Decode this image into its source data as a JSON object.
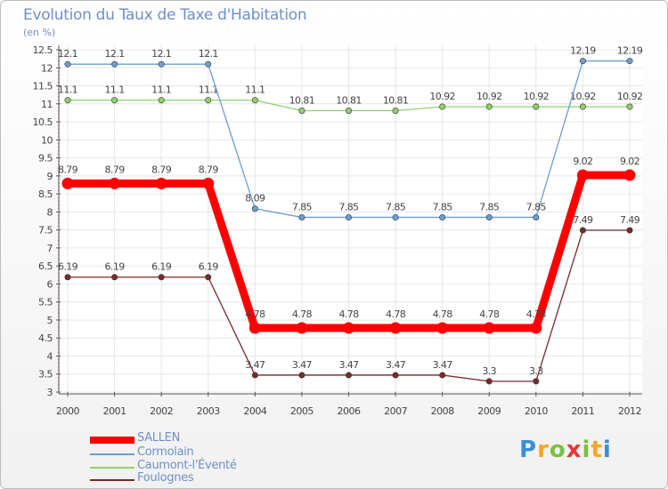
{
  "chart_data": {
    "type": "line",
    "title": "Evolution du Taux de Taxe d'Habitation",
    "subtitle": "(en %)",
    "xlabel": "",
    "ylabel": "",
    "x": [
      "2000",
      "2001",
      "2002",
      "2003",
      "2004",
      "2005",
      "2006",
      "2007",
      "2008",
      "2009",
      "2010",
      "2011",
      "2012"
    ],
    "ylim": [
      3,
      12.5
    ],
    "yticks": [
      "3",
      "3.5",
      "4",
      "4.5",
      "5",
      "5.5",
      "6",
      "6.5",
      "7",
      "7.5",
      "8",
      "8.5",
      "9",
      "9.5",
      "10",
      "10.5",
      "11",
      "11.5",
      "12",
      "12.5"
    ],
    "legend_position": "bottom-left",
    "series": [
      {
        "name": "SALLEN",
        "color": "#ff0000",
        "values": [
          8.79,
          8.79,
          8.79,
          8.79,
          4.78,
          4.78,
          4.78,
          4.78,
          4.78,
          4.78,
          4.78,
          9.02,
          9.02
        ],
        "labels": [
          "8.79",
          "8.79",
          "8.79",
          "8.79",
          "4.78",
          "4.78",
          "4.78",
          "4.78",
          "4.78",
          "4.78",
          "4.78",
          "9.02",
          "9.02"
        ]
      },
      {
        "name": "Cormolain",
        "color": "#6c9fcf",
        "values": [
          12.1,
          12.1,
          12.1,
          12.1,
          8.09,
          7.85,
          7.85,
          7.85,
          7.85,
          7.85,
          7.85,
          12.19,
          12.19
        ],
        "labels": [
          "12.1",
          "12.1",
          "12.1",
          "12.1",
          "8.09",
          "7.85",
          "7.85",
          "7.85",
          "7.85",
          "7.85",
          "7.85",
          "12.19",
          "12.19"
        ]
      },
      {
        "name": "Caumont-l'Éventé",
        "color": "#8fd16a",
        "values": [
          11.1,
          11.1,
          11.1,
          11.1,
          11.1,
          10.81,
          10.81,
          10.81,
          10.92,
          10.92,
          10.92,
          10.92,
          10.92
        ],
        "labels": [
          "11.1",
          "11.1",
          "11.1",
          "11.1",
          "11.1",
          "10.81",
          "10.81",
          "10.81",
          "10.92",
          "10.92",
          "10.92",
          "10.92",
          "10.92"
        ]
      },
      {
        "name": "Foulognes",
        "color": "#7a2a2a",
        "values": [
          6.19,
          6.19,
          6.19,
          6.19,
          3.47,
          3.47,
          3.47,
          3.47,
          3.47,
          3.3,
          3.3,
          7.49,
          7.49
        ],
        "labels": [
          "6.19",
          "6.19",
          "6.19",
          "6.19",
          "3.47",
          "3.47",
          "3.47",
          "3.47",
          "3.47",
          "3.3",
          "3.3",
          "7.49",
          "7.49"
        ]
      }
    ]
  },
  "brand": {
    "letters": [
      "P",
      "r",
      "o",
      "x",
      "i",
      "t",
      "i"
    ],
    "colors": [
      "#3a8fd8",
      "#f5a623",
      "#7bc043",
      "#e53935",
      "#7bc043",
      "#f5a623",
      "#3a8fd8"
    ]
  }
}
